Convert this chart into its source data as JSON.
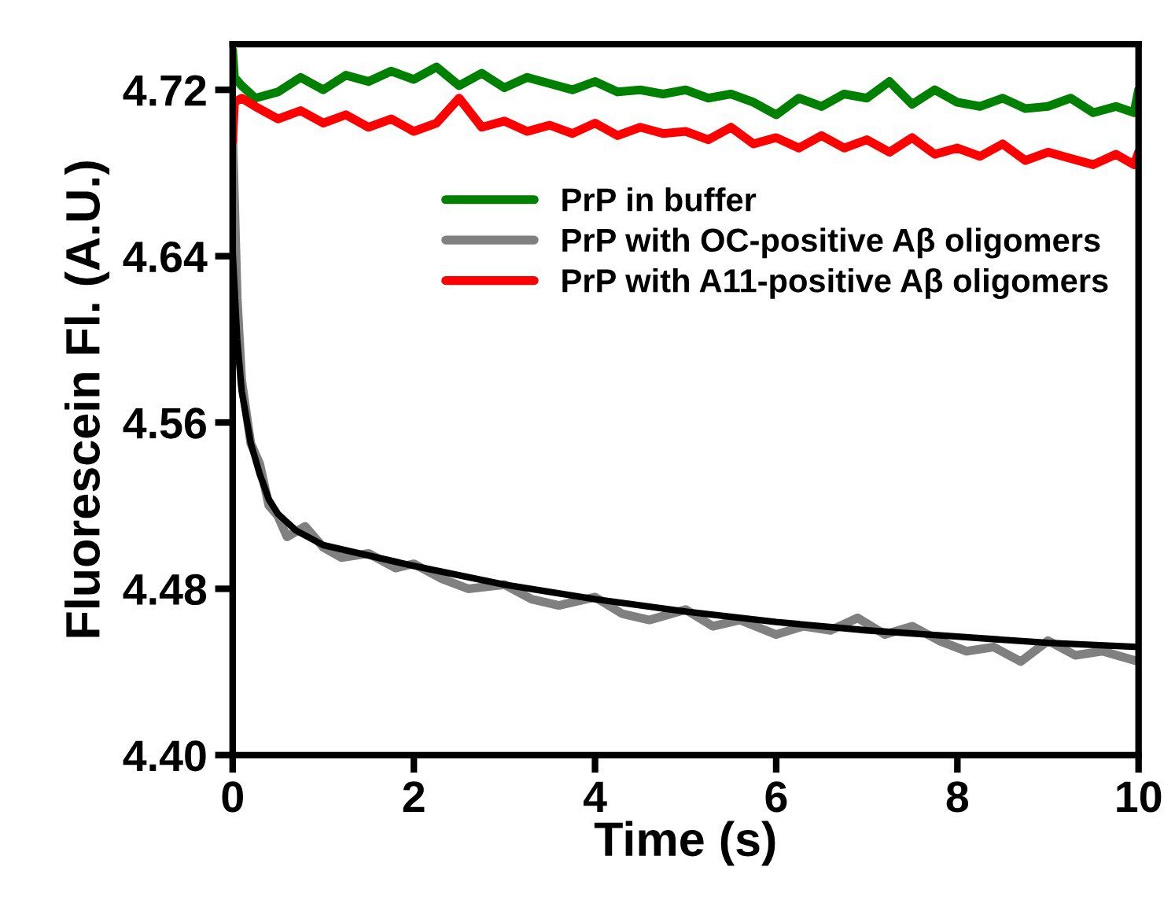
{
  "chart_data": {
    "type": "line",
    "xlabel": "Time (s)",
    "ylabel": "Fluorescein Fl. (A.U.)",
    "xlim": [
      0,
      10
    ],
    "ylim": [
      4.4,
      4.742
    ],
    "xticks": [
      0,
      2,
      4,
      6,
      8,
      10
    ],
    "yticks": [
      {
        "value": 4.4,
        "label": "4.40"
      },
      {
        "value": 4.48,
        "label": "4.48"
      },
      {
        "value": 4.56,
        "label": "4.56"
      },
      {
        "value": 4.64,
        "label": "4.64"
      },
      {
        "value": 4.72,
        "label": "4.72"
      }
    ],
    "grid": false,
    "legend": "center right",
    "marker": "none",
    "line_style": "solid",
    "series": [
      {
        "name": "PrP in buffer",
        "color": "#008000",
        "x": [
          0,
          0.02,
          0.1,
          0.25,
          0.5,
          0.75,
          1.0,
          1.25,
          1.5,
          1.75,
          2.0,
          2.25,
          2.5,
          2.75,
          3.0,
          3.25,
          3.5,
          3.75,
          4.0,
          4.25,
          4.5,
          4.75,
          5.0,
          5.25,
          5.5,
          5.75,
          6.0,
          6.25,
          6.5,
          6.75,
          7.0,
          7.25,
          7.5,
          7.75,
          8.0,
          8.25,
          8.5,
          8.75,
          9.0,
          9.25,
          9.5,
          9.75,
          9.95,
          10.0
        ],
        "values": [
          4.739,
          4.726,
          4.722,
          4.716,
          4.719,
          4.726,
          4.72,
          4.727,
          4.724,
          4.729,
          4.725,
          4.731,
          4.722,
          4.728,
          4.721,
          4.726,
          4.723,
          4.72,
          4.724,
          4.719,
          4.72,
          4.718,
          4.72,
          4.716,
          4.718,
          4.714,
          4.708,
          4.716,
          4.712,
          4.718,
          4.716,
          4.724,
          4.713,
          4.72,
          4.714,
          4.712,
          4.716,
          4.711,
          4.712,
          4.716,
          4.709,
          4.712,
          4.709,
          4.72
        ]
      },
      {
        "name": "PrP with OC-positive Aβ oligomers",
        "color": "#808080",
        "x": [
          0,
          0.05,
          0.1,
          0.2,
          0.3,
          0.4,
          0.5,
          0.6,
          0.8,
          1.0,
          1.2,
          1.5,
          1.8,
          2.0,
          2.3,
          2.6,
          3.0,
          3.3,
          3.6,
          4.0,
          4.3,
          4.6,
          5.0,
          5.3,
          5.6,
          6.0,
          6.3,
          6.6,
          6.9,
          7.2,
          7.5,
          7.8,
          8.1,
          8.4,
          8.7,
          9.0,
          9.3,
          9.6,
          10.0
        ],
        "values": [
          4.7,
          4.62,
          4.58,
          4.55,
          4.54,
          4.52,
          4.515,
          4.505,
          4.51,
          4.5,
          4.495,
          4.497,
          4.49,
          4.492,
          4.485,
          4.48,
          4.482,
          4.475,
          4.472,
          4.476,
          4.468,
          4.465,
          4.47,
          4.462,
          4.465,
          4.458,
          4.462,
          4.46,
          4.466,
          4.458,
          4.462,
          4.455,
          4.45,
          4.452,
          4.445,
          4.455,
          4.448,
          4.45,
          4.445
        ]
      },
      {
        "name": "PrP with A11-positive Aβ oligomers",
        "color": "#ff0000",
        "x": [
          0,
          0.02,
          0.1,
          0.25,
          0.5,
          0.75,
          1.0,
          1.25,
          1.5,
          1.75,
          2.0,
          2.25,
          2.5,
          2.75,
          3.0,
          3.25,
          3.5,
          3.75,
          4.0,
          4.25,
          4.5,
          4.75,
          5.0,
          5.25,
          5.5,
          5.75,
          6.0,
          6.25,
          6.5,
          6.75,
          7.0,
          7.25,
          7.5,
          7.75,
          8.0,
          8.25,
          8.5,
          8.75,
          9.0,
          9.25,
          9.5,
          9.75,
          9.95,
          10.0
        ],
        "values": [
          4.695,
          4.714,
          4.716,
          4.712,
          4.706,
          4.71,
          4.704,
          4.708,
          4.702,
          4.706,
          4.7,
          4.704,
          4.716,
          4.702,
          4.705,
          4.7,
          4.703,
          4.699,
          4.704,
          4.698,
          4.702,
          4.699,
          4.7,
          4.696,
          4.702,
          4.694,
          4.697,
          4.692,
          4.698,
          4.692,
          4.696,
          4.69,
          4.697,
          4.689,
          4.692,
          4.688,
          4.694,
          4.686,
          4.69,
          4.687,
          4.684,
          4.689,
          4.684,
          4.69
        ]
      },
      {
        "type": "line",
        "color": "#000000",
        "x": [
          0,
          0.05,
          0.1,
          0.2,
          0.3,
          0.4,
          0.5,
          0.7,
          1,
          1.5,
          2,
          3,
          4,
          5,
          6,
          7,
          8,
          9,
          10
        ],
        "values": [
          4.642,
          4.6,
          4.575,
          4.55,
          4.535,
          4.523,
          4.516,
          4.508,
          4.501,
          4.496,
          4.491,
          4.482,
          4.475,
          4.469,
          4.464,
          4.46,
          4.457,
          4.454,
          4.452
        ]
      }
    ]
  }
}
